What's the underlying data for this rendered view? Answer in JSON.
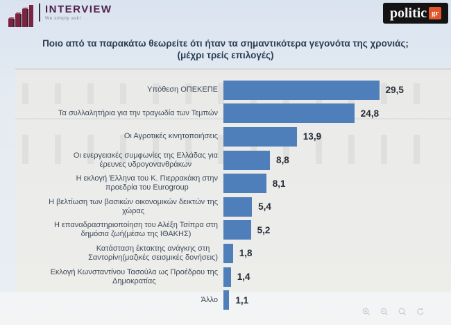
{
  "header": {
    "interview_logo": {
      "name": "INTERVIEW",
      "tagline": "We simply ask!"
    },
    "politic_logo": {
      "name": "politic",
      "suffix": "gr",
      "accent_color": "#e2552a"
    }
  },
  "title": {
    "line1": "Ποιο από τα παρακάτω θεωρείτε ότι ήταν τα σημαντικότερα γεγονότα της χρονιάς;",
    "line2": "(μέχρι τρείς επιλογές)"
  },
  "chart_data": {
    "type": "bar",
    "orientation": "horizontal",
    "title": "Ποιο από τα παρακάτω θεωρείτε ότι ήταν τα σημαντικότερα γεγονότα της χρονιάς; (μέχρι τρείς επιλογές)",
    "categories": [
      "Υπόθεση ΟΠΕΚΕΠΕ",
      "Τα συλλαλητήρια για την τραγωδία των Τεμπών",
      "Οι Αγροτικές κινητοποιήσεις",
      "Οι ενεργειακές συμφωνίες της Ελλάδας για\nέρευνες υδρογονανθράκων",
      "Η εκλογή Έλληνα του Κ. Πιερρακάκη στην\nπροεδρία του Eurogroup",
      "Η βελτίωση των βασικών οικονομικών δεικτών της\nχώρας",
      "Η επαναδραστηριοποίηση του Αλέξη Τσίπρα στη\nδημόσια ζωή(μέσω της ΙΘΑΚΗΣ)",
      "Κατάσταση έκτακτης ανάγκης στη\nΣαντορίνη(μαζικές σεισμικές δονήσεις)",
      "Εκλογή Κωνσταντίνου Τασούλα ως Προέδρου της\nΔημοκρατίας",
      "Άλλο"
    ],
    "values": [
      29.5,
      24.8,
      13.9,
      8.8,
      8.1,
      5.4,
      5.2,
      1.8,
      1.4,
      1.1
    ],
    "value_labels": [
      "29,5",
      "24,8",
      "13,9",
      "8,8",
      "8,1",
      "5,4",
      "5,2",
      "1,8",
      "1,4",
      "1,1"
    ],
    "xlabel": "",
    "ylabel": "",
    "xlim": [
      0,
      31
    ],
    "grid": false,
    "legend": false,
    "bar_color": "#4e7fba"
  },
  "viewer_controls": {
    "zoom_in": "zoom-in",
    "zoom_out": "zoom-out",
    "zoom": "magnifier",
    "rotate": "rotate"
  }
}
